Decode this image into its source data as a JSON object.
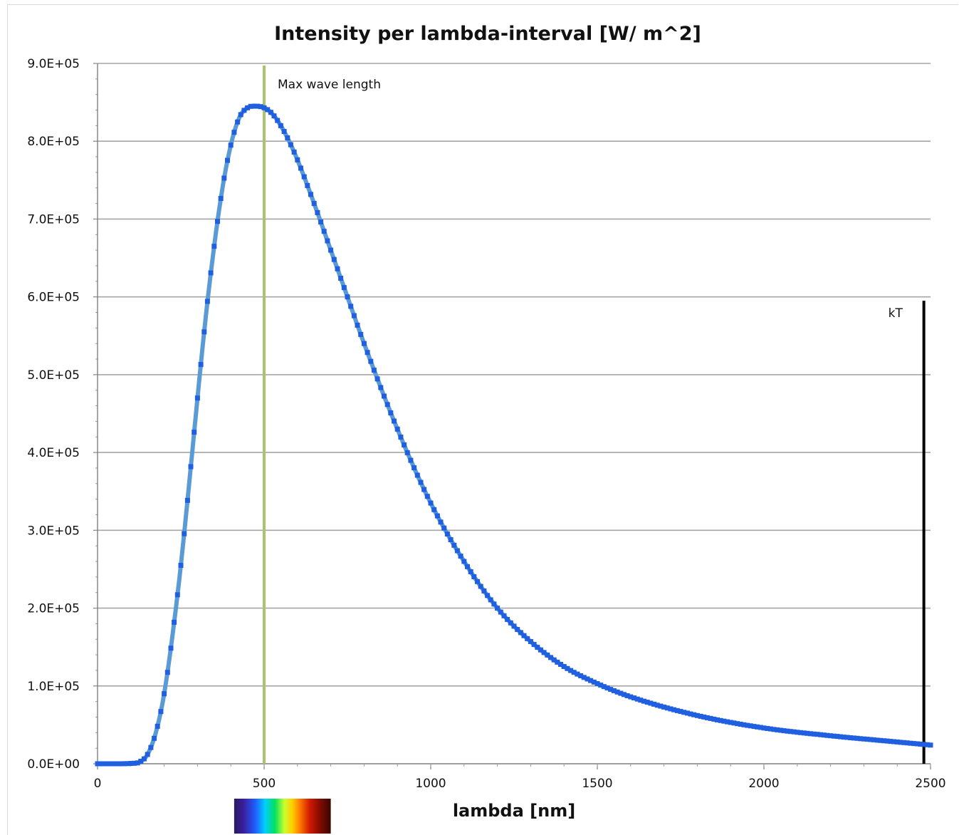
{
  "chart_data": {
    "type": "line",
    "title": "Intensity per lambda-interval [W/ m^2]",
    "xlabel": "lambda [nm]",
    "ylabel": "",
    "xlim": [
      0,
      2500
    ],
    "ylim": [
      0,
      900000
    ],
    "x_ticks": [
      "0",
      "500",
      "1000",
      "1500",
      "2000",
      "2500"
    ],
    "y_ticks": [
      "0.0E+00",
      "1.0E+05",
      "2.0E+05",
      "3.0E+05",
      "4.0E+05",
      "5.0E+05",
      "6.0E+05",
      "7.0E+05",
      "8.0E+05",
      "9.0E+05"
    ],
    "grid": "horizontal",
    "legend": "none",
    "series": [
      {
        "color": "#5b9bd5",
        "marker_color": "#1f5fe0",
        "x": [
          0,
          50,
          100,
          125,
          150,
          175,
          200,
          225,
          250,
          275,
          300,
          325,
          350,
          375,
          400,
          425,
          450,
          475,
          500,
          525,
          550,
          575,
          600,
          650,
          700,
          750,
          800,
          900,
          1000,
          1100,
          1200,
          1300,
          1400,
          1500,
          1600,
          1800,
          2000,
          2200,
          2400,
          2500
        ],
        "y": [
          0,
          0,
          500,
          2000,
          12000,
          40000,
          90000,
          165000,
          255000,
          360000,
          470000,
          575000,
          665000,
          740000,
          795000,
          830000,
          843000,
          845000,
          843000,
          835000,
          820000,
          800000,
          776000,
          720000,
          660000,
          600000,
          540000,
          430000,
          335000,
          260000,
          200000,
          157000,
          125000,
          103000,
          86000,
          62000,
          46000,
          36000,
          28000,
          24000
        ]
      }
    ],
    "annotations": [
      {
        "text": "Max wave length",
        "x": 500,
        "y_from": 0,
        "y_to": 900000,
        "color": "#a9c56b"
      },
      {
        "text": "kT",
        "x": 2480,
        "y_from": 0,
        "y_to": 595000,
        "color": "#000000"
      }
    ],
    "spectrum_bar": {
      "x_from": 410,
      "x_to": 700
    }
  }
}
